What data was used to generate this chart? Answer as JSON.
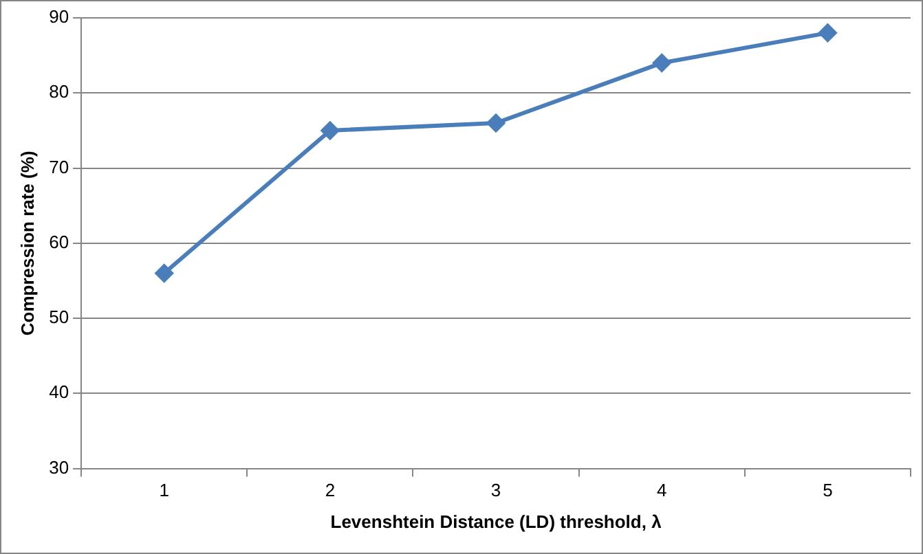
{
  "chart_data": {
    "type": "line",
    "xlabel": "Levenshtein Distance (LD) threshold, λ",
    "ylabel": "Compression rate (%)",
    "categories": [
      "1",
      "2",
      "3",
      "4",
      "5"
    ],
    "series": [
      {
        "color": "#4a7ebb",
        "values": [
          56,
          75,
          76,
          84,
          88
        ]
      }
    ],
    "ylim": [
      30,
      90
    ],
    "yticks": [
      30,
      40,
      50,
      60,
      70,
      80,
      90
    ],
    "grid": "y",
    "legend": false,
    "marker": "diamond",
    "line_style": "solid"
  }
}
